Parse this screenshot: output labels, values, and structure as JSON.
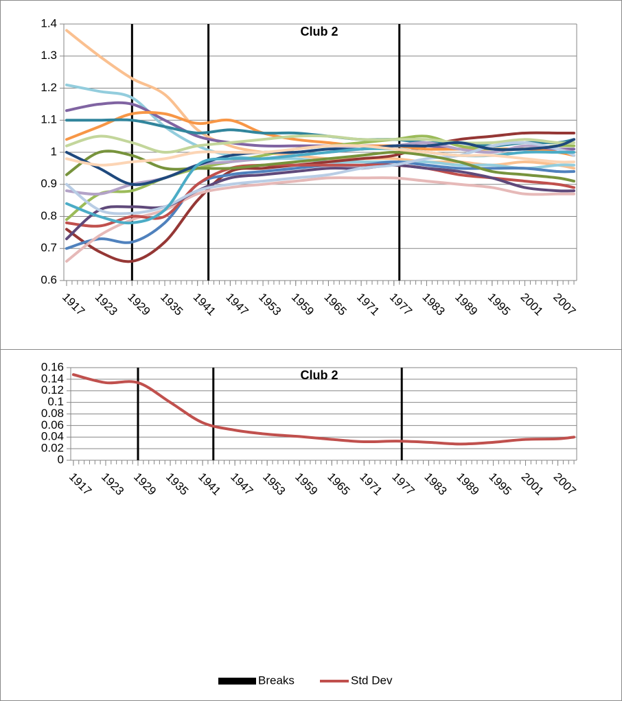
{
  "chart_data": [
    {
      "type": "line",
      "title": "Club 2",
      "x": [
        1917,
        1923,
        1929,
        1935,
        1941,
        1947,
        1953,
        1959,
        1965,
        1971,
        1977,
        1983,
        1989,
        1995,
        2001,
        2007,
        2010
      ],
      "xlim": [
        1916.5,
        2010.5
      ],
      "xticks": [
        1917,
        1923,
        1929,
        1935,
        1941,
        1947,
        1953,
        1959,
        1965,
        1971,
        1977,
        1983,
        1989,
        1995,
        2001,
        2007
      ],
      "ylim": [
        0.6,
        1.4
      ],
      "yticks": [
        0.6,
        0.7,
        0.8,
        0.9,
        1,
        1.1,
        1.2,
        1.3,
        1.4
      ],
      "grid": true,
      "breaks": {
        "color": "#000000",
        "x": [
          1929,
          1943,
          1978
        ]
      },
      "series": [
        {
          "color": "#fac090",
          "values": [
            1.38,
            1.3,
            1.23,
            1.18,
            1.07,
            1.02,
            1.0,
            0.99,
            0.98,
            0.98,
            0.98,
            0.97,
            0.97,
            0.96,
            0.97,
            0.96,
            0.95
          ]
        },
        {
          "color": "#93cddd",
          "values": [
            1.21,
            1.19,
            1.17,
            1.08,
            1.02,
            0.99,
            0.98,
            0.98,
            0.97,
            0.97,
            0.97,
            0.97,
            0.96,
            0.96,
            0.95,
            0.96,
            0.96
          ]
        },
        {
          "color": "#953735",
          "values": [
            0.76,
            0.69,
            0.66,
            0.72,
            0.85,
            0.94,
            0.95,
            0.96,
            0.97,
            0.98,
            0.99,
            1.02,
            1.04,
            1.05,
            1.06,
            1.06,
            1.06
          ]
        },
        {
          "color": "#8064a2",
          "values": [
            1.13,
            1.15,
            1.15,
            1.1,
            1.05,
            1.03,
            1.02,
            1.02,
            1.02,
            1.02,
            1.02,
            1.02,
            1.01,
            1.01,
            1.01,
            1.01,
            1.01
          ]
        },
        {
          "color": "#f79646",
          "values": [
            1.04,
            1.08,
            1.12,
            1.12,
            1.09,
            1.1,
            1.06,
            1.04,
            1.03,
            1.02,
            1.02,
            1.01,
            1.01,
            1.01,
            1.01,
            1.0,
            0.99
          ]
        },
        {
          "color": "#4f81bd",
          "values": [
            0.7,
            0.73,
            0.72,
            0.78,
            0.9,
            0.93,
            0.94,
            0.95,
            0.96,
            0.96,
            0.97,
            0.96,
            0.95,
            0.95,
            0.95,
            0.94,
            0.94
          ]
        },
        {
          "color": "#e6b9b8",
          "values": [
            0.66,
            0.74,
            0.79,
            0.82,
            0.87,
            0.89,
            0.9,
            0.91,
            0.92,
            0.92,
            0.92,
            0.91,
            0.9,
            0.89,
            0.87,
            0.87,
            0.87
          ]
        },
        {
          "color": "#9bbb59",
          "values": [
            0.79,
            0.87,
            0.88,
            0.92,
            0.95,
            0.97,
            0.99,
            1.01,
            1.02,
            1.03,
            1.04,
            1.05,
            1.02,
            1.01,
            1.01,
            1.02,
            1.02
          ]
        },
        {
          "color": "#31859c",
          "values": [
            1.1,
            1.1,
            1.1,
            1.08,
            1.06,
            1.07,
            1.06,
            1.06,
            1.05,
            1.04,
            1.04,
            1.03,
            1.03,
            1.02,
            1.03,
            1.03,
            1.04
          ]
        },
        {
          "color": "#c0504d",
          "values": [
            0.78,
            0.77,
            0.8,
            0.8,
            0.9,
            0.95,
            0.96,
            0.96,
            0.96,
            0.96,
            0.96,
            0.95,
            0.93,
            0.92,
            0.91,
            0.9,
            0.89
          ]
        },
        {
          "color": "#5f497a",
          "values": [
            0.73,
            0.82,
            0.83,
            0.83,
            0.88,
            0.92,
            0.93,
            0.94,
            0.95,
            0.95,
            0.96,
            0.95,
            0.94,
            0.92,
            0.89,
            0.88,
            0.88
          ]
        },
        {
          "color": "#b3a2c7",
          "values": [
            0.88,
            0.87,
            0.9,
            0.92,
            0.96,
            0.97,
            0.98,
            0.99,
            1.0,
            1.01,
            1.02,
            1.03,
            1.01,
            1.0,
            1.02,
            1.01,
            1.0
          ]
        },
        {
          "color": "#c3d69b",
          "values": [
            1.02,
            1.05,
            1.03,
            1.0,
            1.02,
            1.03,
            1.04,
            1.05,
            1.05,
            1.04,
            1.04,
            1.04,
            1.03,
            1.03,
            1.04,
            1.03,
            1.03
          ]
        },
        {
          "color": "#b9cde5",
          "values": [
            0.9,
            0.82,
            0.81,
            0.83,
            0.88,
            0.9,
            0.91,
            0.92,
            0.93,
            0.95,
            0.96,
            0.98,
            0.99,
            1.02,
            1.03,
            1.01,
            0.99
          ]
        },
        {
          "color": "#77933c",
          "values": [
            0.93,
            1.0,
            0.99,
            0.95,
            0.95,
            0.95,
            0.96,
            0.97,
            0.98,
            0.99,
            1.0,
            0.99,
            0.97,
            0.94,
            0.93,
            0.92,
            0.91
          ]
        },
        {
          "color": "#1f497d",
          "values": [
            1.0,
            0.95,
            0.9,
            0.92,
            0.96,
            0.99,
            1.0,
            1.0,
            1.01,
            1.01,
            1.02,
            1.02,
            1.03,
            1.01,
            1.01,
            1.02,
            1.04
          ]
        },
        {
          "color": "#4bacc6",
          "values": [
            0.84,
            0.8,
            0.78,
            0.82,
            0.96,
            0.98,
            0.98,
            0.99,
            1.0,
            1.01,
            1.01,
            1.0,
            0.99,
            0.99,
            1.0,
            1.0,
            1.0
          ]
        },
        {
          "color": "#fcd5b5",
          "values": [
            0.98,
            0.96,
            0.97,
            0.98,
            1.0,
            1.0,
            1.0,
            1.01,
            1.02,
            1.02,
            1.01,
            1.0,
            0.99,
            0.99,
            0.98,
            0.97,
            0.97
          ]
        }
      ]
    },
    {
      "type": "line",
      "title": "Club 2",
      "x": [
        1917,
        1923,
        1929,
        1935,
        1941,
        1947,
        1953,
        1959,
        1965,
        1971,
        1977,
        1983,
        1989,
        1995,
        2001,
        2007,
        2010
      ],
      "xlim": [
        1916.5,
        2010.5
      ],
      "xticks": [
        1917,
        1923,
        1929,
        1935,
        1941,
        1947,
        1953,
        1959,
        1965,
        1971,
        1977,
        1983,
        1989,
        1995,
        2001,
        2007
      ],
      "ylim": [
        0,
        0.16
      ],
      "yticks": [
        0,
        0.02,
        0.04,
        0.06,
        0.08,
        0.1,
        0.12,
        0.14,
        0.16
      ],
      "grid": true,
      "breaks": {
        "name": "Breaks",
        "color": "#000000",
        "x": [
          1929,
          1943,
          1978
        ]
      },
      "series": [
        {
          "name": "Std Dev",
          "color": "#c0504d",
          "values": [
            0.148,
            0.134,
            0.134,
            0.1,
            0.065,
            0.052,
            0.045,
            0.041,
            0.036,
            0.032,
            0.033,
            0.031,
            0.028,
            0.031,
            0.036,
            0.037,
            0.04
          ]
        }
      ],
      "legend": "bottom"
    }
  ]
}
